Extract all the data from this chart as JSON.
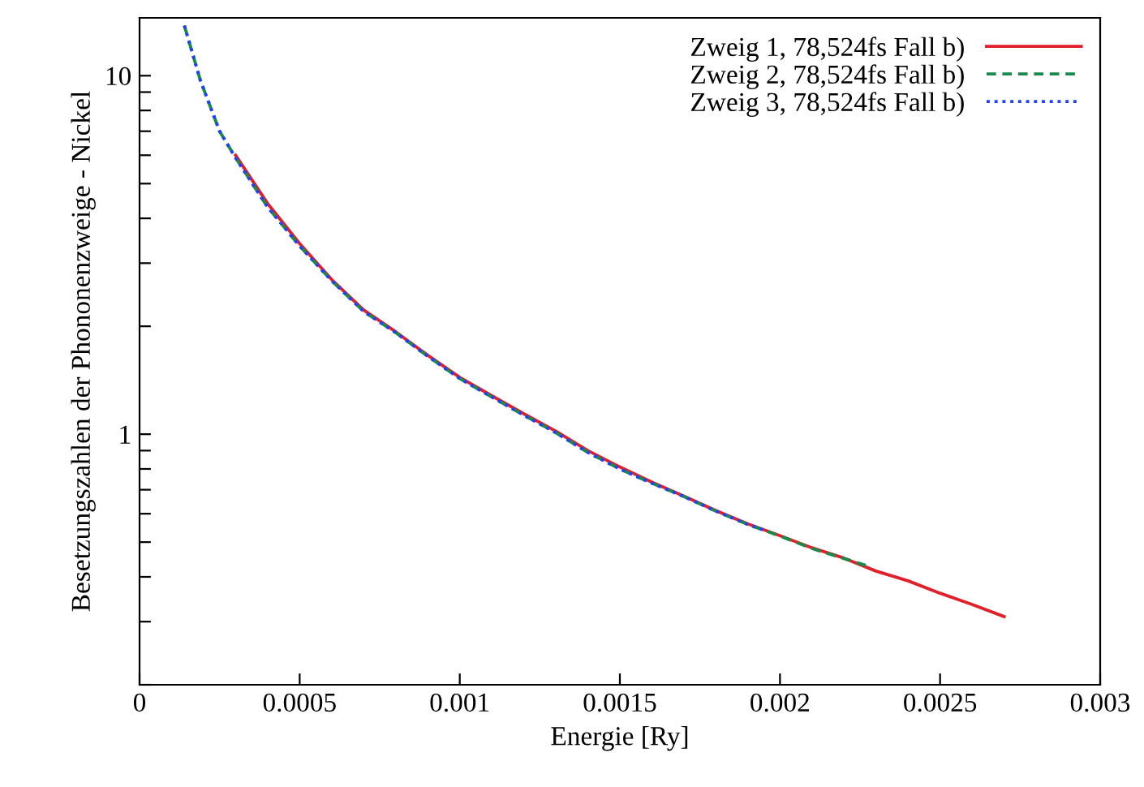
{
  "chart_data": {
    "type": "line",
    "xlabel": "Energie [Ry]",
    "ylabel": "Besetzungszahlen der Phononenzweige - Nickel",
    "log": "y",
    "xlim": [
      0,
      0.003
    ],
    "ylim": [
      0.2,
      14.5
    ],
    "xticks": [
      0,
      0.0005,
      0.001,
      0.0015,
      0.002,
      0.0025,
      0.003
    ],
    "yticks": [
      {
        "value": 0.2,
        "label": null
      },
      {
        "value": 0.3,
        "label": null
      },
      {
        "value": 0.4,
        "label": null
      },
      {
        "value": 0.5,
        "label": null
      },
      {
        "value": 0.6,
        "label": null
      },
      {
        "value": 0.7,
        "label": null
      },
      {
        "value": 0.8,
        "label": null
      },
      {
        "value": 0.9,
        "label": null
      },
      1,
      {
        "value": 2,
        "label": null
      },
      {
        "value": 3,
        "label": null
      },
      {
        "value": 4,
        "label": null
      },
      {
        "value": 5,
        "label": null
      },
      {
        "value": 6,
        "label": null
      },
      {
        "value": 7,
        "label": null
      },
      {
        "value": 8,
        "label": null
      },
      {
        "value": 9,
        "label": null
      },
      10
    ],
    "grid": false,
    "legend": "top right",
    "marker": "none",
    "series": [
      {
        "name": "Zweig 1, 78,524fs Fall b)",
        "color": "#e0202a",
        "line_style": "solid",
        "x": [
          0.0003,
          0.0004,
          0.0005,
          0.0006,
          0.0007,
          0.0008,
          0.0009,
          0.001,
          0.0011,
          0.0012,
          0.0013,
          0.0014,
          0.0015,
          0.0016,
          0.0017,
          0.0018,
          0.0019,
          0.002,
          0.0021,
          0.0022,
          0.0023,
          0.0024,
          0.0025,
          0.0026,
          0.0027
        ],
        "values": [
          6.0,
          4.4,
          3.4,
          2.7,
          2.22,
          1.93,
          1.66,
          1.44,
          1.28,
          1.14,
          1.02,
          0.9,
          0.81,
          0.735,
          0.672,
          0.612,
          0.562,
          0.521,
          0.482,
          0.451,
          0.415,
          0.39,
          0.36,
          0.335,
          0.31
        ]
      },
      {
        "name": "Zweig 2, 78,524fs Fall b)",
        "color": "#1a8a4a",
        "line_style": "dashed",
        "x": [
          0.00014,
          0.00019,
          0.00025,
          0.0003,
          0.0004,
          0.0005,
          0.0006,
          0.0007,
          0.0008,
          0.0009,
          0.001,
          0.0011,
          0.0012,
          0.0013,
          0.0014,
          0.0015,
          0.0016,
          0.0017,
          0.0018,
          0.0019,
          0.002,
          0.0021,
          0.0022,
          0.00227
        ],
        "values": [
          13.8,
          9.7,
          7.0,
          5.9,
          4.3,
          3.35,
          2.68,
          2.2,
          1.92,
          1.65,
          1.43,
          1.27,
          1.13,
          1.01,
          0.89,
          0.8,
          0.73,
          0.67,
          0.61,
          0.56,
          0.52,
          0.48,
          0.45,
          0.43
        ]
      },
      {
        "name": "Zweig 3, 78,524fs Fall b)",
        "color": "#2040ff",
        "line_style": "dotted",
        "x": [
          0.00014,
          0.00019,
          0.00025,
          0.0003,
          0.0004,
          0.0005,
          0.0006,
          0.0007,
          0.0008,
          0.0009,
          0.001,
          0.0011,
          0.0012,
          0.0013,
          0.0014,
          0.0015,
          0.0016,
          0.0017,
          0.0018,
          0.0019,
          0.00195
        ],
        "values": [
          13.8,
          9.7,
          7.0,
          5.9,
          4.3,
          3.35,
          2.68,
          2.2,
          1.92,
          1.65,
          1.43,
          1.27,
          1.13,
          1.01,
          0.89,
          0.8,
          0.73,
          0.67,
          0.61,
          0.56,
          0.54
        ]
      }
    ]
  }
}
